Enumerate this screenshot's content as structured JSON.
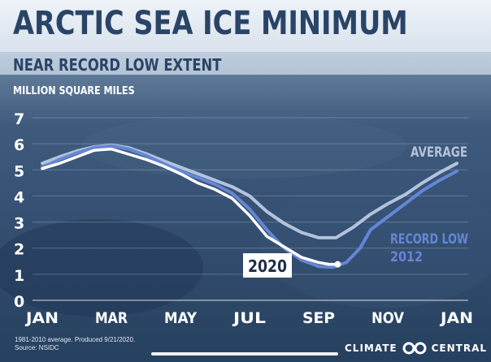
{
  "title": "ARCTIC SEA ICE MINIMUM",
  "subtitle": "NEAR RECORD LOW EXTENT",
  "footnote": {
    "line1": "1981-2010 average. Produced 9/21/2020.",
    "line2": "Source: NSIDC"
  },
  "brand": {
    "left": "CLIMATE",
    "right": "CENTRAL",
    "logo_icon": "infinity-loops-icon"
  },
  "colors": {
    "average": "#b3c3dd",
    "record_low": "#6586d6",
    "year2020": "#ffffff",
    "title": "#2a4467"
  },
  "chart_data": {
    "type": "line",
    "ylabel": "MILLION SQUARE MILES",
    "ylim": [
      0,
      7
    ],
    "yticks": [
      "0",
      "1",
      "2",
      "3",
      "4",
      "5",
      "6",
      "7"
    ],
    "xlim": [
      1,
      13
    ],
    "xticks": [
      {
        "x": 1,
        "label": "JAN"
      },
      {
        "x": 3,
        "label": "MAR"
      },
      {
        "x": 5,
        "label": "MAY"
      },
      {
        "x": 7,
        "label": "JUL"
      },
      {
        "x": 9,
        "label": "SEP"
      },
      {
        "x": 11,
        "label": "NOV"
      },
      {
        "x": 13,
        "label": "JAN"
      }
    ],
    "grid": true,
    "series": [
      {
        "name": "AVERAGE",
        "label": "AVERAGE",
        "color": "#b3c3dd",
        "points": [
          [
            1.0,
            5.25
          ],
          [
            1.5,
            5.5
          ],
          [
            2.0,
            5.72
          ],
          [
            2.5,
            5.88
          ],
          [
            3.0,
            5.95
          ],
          [
            3.5,
            5.85
          ],
          [
            4.0,
            5.62
          ],
          [
            4.5,
            5.35
          ],
          [
            5.0,
            5.1
          ],
          [
            5.5,
            4.85
          ],
          [
            6.0,
            4.6
          ],
          [
            6.5,
            4.35
          ],
          [
            7.0,
            4.0
          ],
          [
            7.5,
            3.4
          ],
          [
            8.0,
            2.95
          ],
          [
            8.5,
            2.6
          ],
          [
            9.0,
            2.4
          ],
          [
            9.5,
            2.4
          ],
          [
            10.0,
            2.8
          ],
          [
            10.5,
            3.3
          ],
          [
            11.0,
            3.7
          ],
          [
            11.5,
            4.05
          ],
          [
            12.0,
            4.5
          ],
          [
            12.5,
            4.9
          ],
          [
            13.0,
            5.25
          ]
        ]
      },
      {
        "name": "RECORD LOW 2012",
        "label": "RECORD LOW",
        "label2": "2012",
        "color": "#6586d6",
        "points": [
          [
            1.0,
            5.1
          ],
          [
            1.5,
            5.4
          ],
          [
            2.0,
            5.65
          ],
          [
            2.5,
            5.85
          ],
          [
            3.0,
            5.92
          ],
          [
            3.5,
            5.8
          ],
          [
            4.0,
            5.55
          ],
          [
            4.5,
            5.25
          ],
          [
            5.0,
            4.95
          ],
          [
            5.5,
            4.7
          ],
          [
            6.0,
            4.45
          ],
          [
            6.5,
            4.1
          ],
          [
            7.0,
            3.5
          ],
          [
            7.5,
            2.7
          ],
          [
            8.0,
            2.0
          ],
          [
            8.5,
            1.55
          ],
          [
            9.0,
            1.3
          ],
          [
            9.4,
            1.27
          ],
          [
            9.8,
            1.45
          ],
          [
            10.2,
            2.0
          ],
          [
            10.5,
            2.7
          ],
          [
            11.0,
            3.2
          ],
          [
            11.5,
            3.7
          ],
          [
            12.0,
            4.2
          ],
          [
            12.5,
            4.6
          ],
          [
            13.0,
            4.95
          ]
        ]
      },
      {
        "name": "2020",
        "label": "2020",
        "color": "#ffffff",
        "points": [
          [
            1.0,
            5.05
          ],
          [
            1.5,
            5.25
          ],
          [
            2.0,
            5.5
          ],
          [
            2.5,
            5.75
          ],
          [
            3.0,
            5.8
          ],
          [
            3.5,
            5.6
          ],
          [
            4.0,
            5.4
          ],
          [
            4.5,
            5.15
          ],
          [
            5.0,
            4.85
          ],
          [
            5.5,
            4.5
          ],
          [
            6.0,
            4.25
          ],
          [
            6.5,
            3.9
          ],
          [
            7.0,
            3.25
          ],
          [
            7.5,
            2.45
          ],
          [
            8.0,
            2.05
          ],
          [
            8.5,
            1.65
          ],
          [
            9.0,
            1.45
          ],
          [
            9.3,
            1.38
          ],
          [
            9.55,
            1.38
          ]
        ]
      }
    ]
  }
}
